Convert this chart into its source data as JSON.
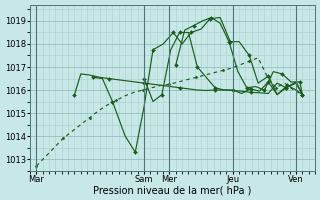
{
  "bg_color": "#c8e8e8",
  "grid_major_color": "#88b8b8",
  "grid_minor_color": "#a8d0d0",
  "line_color": "#1a5c1a",
  "xlabel": "Pression niveau de la mer( hPa )",
  "ylim": [
    1012.5,
    1019.7
  ],
  "yticks": [
    1013,
    1014,
    1015,
    1016,
    1017,
    1018,
    1019
  ],
  "xlim": [
    -0.5,
    22
  ],
  "day_labels": [
    "Mar",
    "Sam",
    "Mer",
    "Jeu",
    "Ven"
  ],
  "day_x": [
    0,
    8.5,
    10.5,
    15.5,
    20.5
  ],
  "vline_x": [
    0,
    8.5,
    10.5,
    15.5,
    20.5
  ],
  "series": [
    {
      "x": [
        0.0,
        0.7,
        1.4,
        2.1,
        2.8,
        3.5,
        4.2,
        4.9,
        5.6,
        6.3,
        7.0,
        7.7,
        8.4,
        9.1,
        9.8,
        10.5,
        11.2,
        11.9,
        12.6,
        13.3,
        14.0,
        14.7,
        15.4,
        16.1,
        16.8,
        17.5,
        18.2,
        18.9,
        19.6,
        20.3,
        21.0
      ],
      "y": [
        1012.7,
        1013.1,
        1013.5,
        1013.9,
        1014.2,
        1014.5,
        1014.8,
        1015.1,
        1015.35,
        1015.55,
        1015.75,
        1015.9,
        1016.0,
        1016.1,
        1016.2,
        1016.25,
        1016.35,
        1016.45,
        1016.55,
        1016.65,
        1016.75,
        1016.85,
        1016.95,
        1017.1,
        1017.25,
        1017.4,
        1016.6,
        1016.1,
        1016.3,
        1016.0,
        1015.8
      ],
      "style": "dotted",
      "marker": "D",
      "markersize": 1.5,
      "markevery": 3
    },
    {
      "x": [
        3.0,
        3.5,
        4.2,
        5.0,
        5.7,
        6.4,
        7.1,
        7.8,
        8.5,
        9.2,
        9.9,
        10.6,
        11.3,
        12.0,
        12.7,
        13.4,
        14.1,
        14.8,
        15.5,
        16.2,
        16.9,
        17.6,
        18.3,
        19.0,
        19.7,
        20.5,
        21.0
      ],
      "y": [
        1015.8,
        1016.7,
        1016.65,
        1016.55,
        1016.5,
        1016.45,
        1016.4,
        1016.35,
        1016.3,
        1016.25,
        1016.2,
        1016.15,
        1016.1,
        1016.05,
        1016.0,
        1015.98,
        1016.0,
        1016.0,
        1015.98,
        1015.95,
        1015.9,
        1015.88,
        1015.85,
        1016.3,
        1016.1,
        1016.3,
        1015.8
      ],
      "style": "solid",
      "marker": "D",
      "markersize": 2.0,
      "markevery": 4
    },
    {
      "x": [
        4.5,
        5.2,
        6.0,
        7.0,
        7.8,
        8.5,
        9.2,
        10.0,
        10.8,
        11.5,
        12.2,
        13.0,
        13.7,
        14.5,
        15.3,
        16.0,
        16.8,
        17.5,
        18.3,
        19.0,
        19.8,
        20.5,
        21.0
      ],
      "y": [
        1016.55,
        1016.5,
        1015.5,
        1014.0,
        1013.3,
        1015.3,
        1017.75,
        1018.0,
        1018.5,
        1018.0,
        1018.5,
        1018.65,
        1019.1,
        1019.15,
        1018.1,
        1018.1,
        1017.5,
        1016.3,
        1016.6,
        1015.8,
        1016.2,
        1016.0,
        1015.8
      ],
      "style": "solid",
      "marker": "D",
      "markersize": 2.0,
      "markevery": 2
    },
    {
      "x": [
        8.5,
        9.2,
        9.9,
        10.6,
        11.3,
        12.0,
        12.7,
        13.4,
        14.1,
        14.8,
        15.5,
        16.2,
        16.9,
        17.6,
        18.3,
        19.0,
        19.7,
        20.5,
        21.0
      ],
      "y": [
        1016.5,
        1015.5,
        1015.8,
        1017.75,
        1018.5,
        1018.5,
        1017.0,
        1016.55,
        1016.1,
        1016.0,
        1016.0,
        1015.85,
        1016.05,
        1015.95,
        1016.35,
        1015.8,
        1016.1,
        1016.35,
        1015.8
      ],
      "style": "solid",
      "marker": "D",
      "markersize": 2.0,
      "markevery": 2
    },
    {
      "x": [
        11.0,
        11.7,
        12.4,
        13.1,
        13.8,
        14.5,
        15.2,
        15.9,
        16.6,
        17.3,
        18.0,
        18.7,
        19.4,
        20.1,
        20.8,
        21.0
      ],
      "y": [
        1017.1,
        1018.6,
        1018.8,
        1019.0,
        1019.15,
        1018.9,
        1018.1,
        1016.8,
        1016.1,
        1016.15,
        1016.0,
        1016.8,
        1016.7,
        1016.35,
        1016.35,
        1015.75
      ],
      "style": "solid",
      "marker": "D",
      "markersize": 2.0,
      "markevery": 2
    }
  ]
}
